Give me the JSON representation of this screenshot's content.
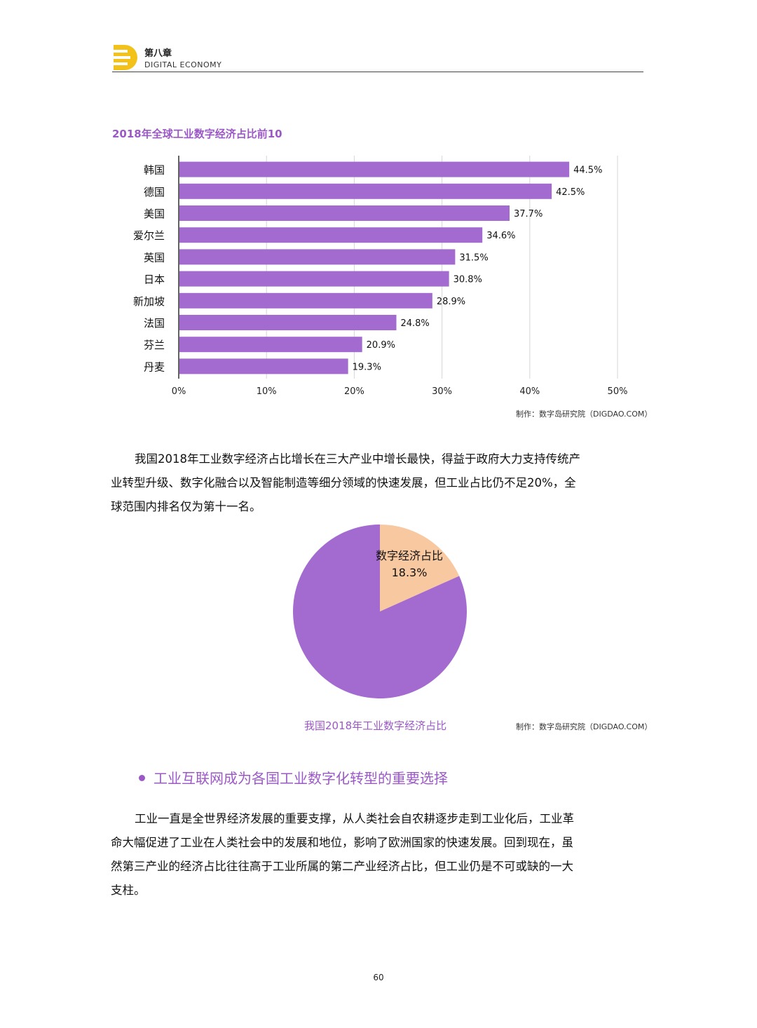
{
  "header": {
    "chapter": "第八章",
    "subtitle": "DIGITAL  ECONOMY"
  },
  "colors": {
    "accent": "#9b59c6",
    "bar": "#a36bd0",
    "pie_main": "#a36bd0",
    "pie_slice": "#f8c8a0",
    "logo": "#f2c21b"
  },
  "chart_data": [
    {
      "type": "bar",
      "orientation": "horizontal",
      "title": "2018年全球工业数字经济占比前10",
      "categories": [
        "韩国",
        "德国",
        "美国",
        "爱尔兰",
        "英国",
        "日本",
        "新加坡",
        "法国",
        "芬兰",
        "丹麦"
      ],
      "values": [
        44.5,
        42.5,
        37.7,
        34.6,
        31.5,
        30.8,
        28.9,
        24.8,
        20.9,
        19.3
      ],
      "value_labels": [
        "44.5%",
        "42.5%",
        "37.7%",
        "34.6%",
        "31.5%",
        "30.8%",
        "28.9%",
        "24.8%",
        "20.9%",
        "19.3%"
      ],
      "xticks": [
        "0%",
        "10%",
        "20%",
        "30%",
        "40%",
        "50%"
      ],
      "xlim": [
        0,
        50
      ],
      "grid": true
    },
    {
      "type": "pie",
      "title": "我国2018年工业数字经济占比",
      "slices": [
        {
          "label": "数字经济占比",
          "value": 18.3,
          "value_label": "18.3%"
        },
        {
          "label": "",
          "value": 81.7
        }
      ]
    }
  ],
  "credits": {
    "bar": "制作：数字岛研究院（DIGDAO.COM）",
    "pie": "制作：数字岛研究院（DIGDAO.COM）"
  },
  "para1": [
    "我国2018年工业数字经济占比增长在三大产业中增长最快，得益于政府大力支持传统产",
    "业转型升级、数字化融合以及智能制造等细分领域的快速发展，但工业占比仍不足20%，全",
    "球范围内排名仅为第十一名。"
  ],
  "section_title": "工业互联网成为各国工业数字化转型的重要选择",
  "para2": [
    "工业一直是全世界经济发展的重要支撑，从人类社会自农耕逐步走到工业化后，工业革",
    "命大幅促进了工业在人类社会中的发展和地位，影响了欧洲国家的快速发展。回到现在，虽",
    "然第三产业的经济占比往往高于工业所属的第二产业经济占比，但工业仍是不可或缺的一大",
    "支柱。"
  ],
  "page_number": "60"
}
